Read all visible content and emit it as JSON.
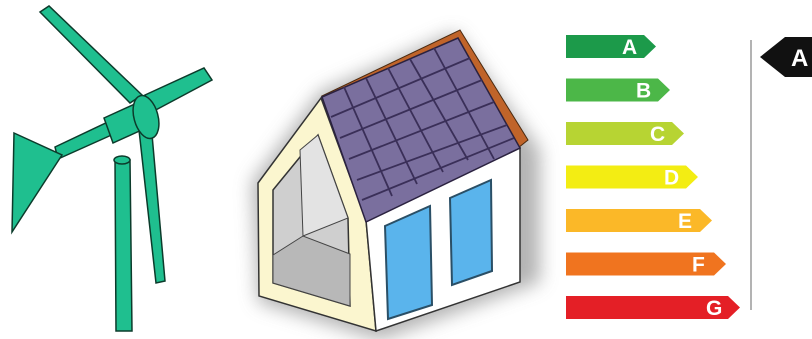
{
  "illustrations": {
    "turbine_icon": "wind-turbine-icon",
    "house_icon": "solar-house-icon"
  },
  "colors": {
    "turbine": "#1fbf8f",
    "roof_panels": "#7a6f9e",
    "roof_edge": "#c0642a",
    "house_wall": "#fbf6cf",
    "window": "#5ab4ec"
  },
  "energy_label": {
    "bands": [
      {
        "letter": "A",
        "color": "#1c9a4a"
      },
      {
        "letter": "B",
        "color": "#4cb748"
      },
      {
        "letter": "C",
        "color": "#b7d433"
      },
      {
        "letter": "D",
        "color": "#f3ed13"
      },
      {
        "letter": "E",
        "color": "#fbb828"
      },
      {
        "letter": "F",
        "color": "#f0741f"
      },
      {
        "letter": "G",
        "color": "#e41f26"
      }
    ],
    "current_rating": {
      "letter": "A",
      "color": "#111111"
    }
  }
}
